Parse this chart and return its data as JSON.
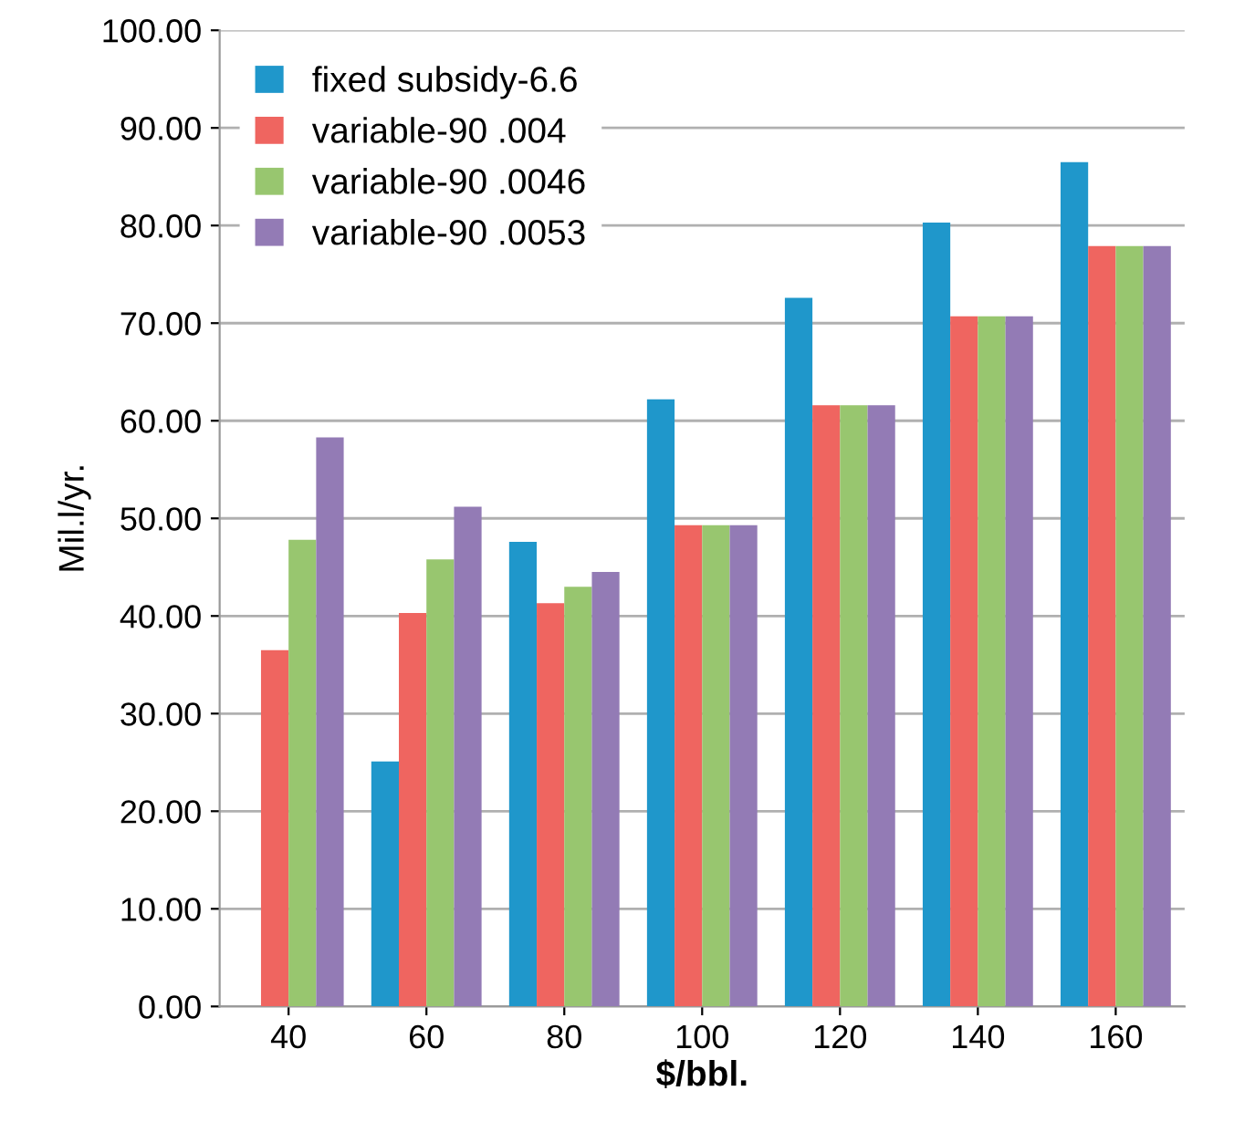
{
  "chart_data": {
    "type": "bar",
    "xlabel": "$/bbl.",
    "ylabel": "Mil.l/yr.",
    "categories": [
      "40",
      "60",
      "80",
      "100",
      "120",
      "140",
      "160"
    ],
    "series": [
      {
        "name": "fixed subsidy-6.6",
        "color": "#1f97cb",
        "values": [
          0,
          25.1,
          47.6,
          62.2,
          72.6,
          80.3,
          86.5
        ]
      },
      {
        "name": "variable-90 .004",
        "color": "#ef6560",
        "values": [
          36.5,
          40.3,
          41.3,
          49.3,
          61.6,
          70.7,
          77.9
        ]
      },
      {
        "name": "variable-90 .0046",
        "color": "#98c66f",
        "values": [
          47.8,
          45.8,
          43.0,
          49.3,
          61.6,
          70.7,
          77.9
        ]
      },
      {
        "name": "variable-90 .0053",
        "color": "#937bb5",
        "values": [
          58.3,
          51.2,
          44.5,
          49.3,
          61.6,
          70.7,
          77.9
        ]
      }
    ],
    "ylim": [
      0,
      100
    ],
    "yticks": [
      {
        "value": 0,
        "label": "0.00"
      },
      {
        "value": 10,
        "label": "10.00"
      },
      {
        "value": 20,
        "label": "20.00"
      },
      {
        "value": 30,
        "label": "30.00"
      },
      {
        "value": 40,
        "label": "40.00"
      },
      {
        "value": 50,
        "label": "50.00"
      },
      {
        "value": 60,
        "label": "60.00"
      },
      {
        "value": 70,
        "label": "70.00"
      },
      {
        "value": 80,
        "label": "80.00"
      },
      {
        "value": 90,
        "label": "90.00"
      },
      {
        "value": 100,
        "label": "100.00"
      }
    ],
    "grid": "y",
    "legend": "top left"
  }
}
